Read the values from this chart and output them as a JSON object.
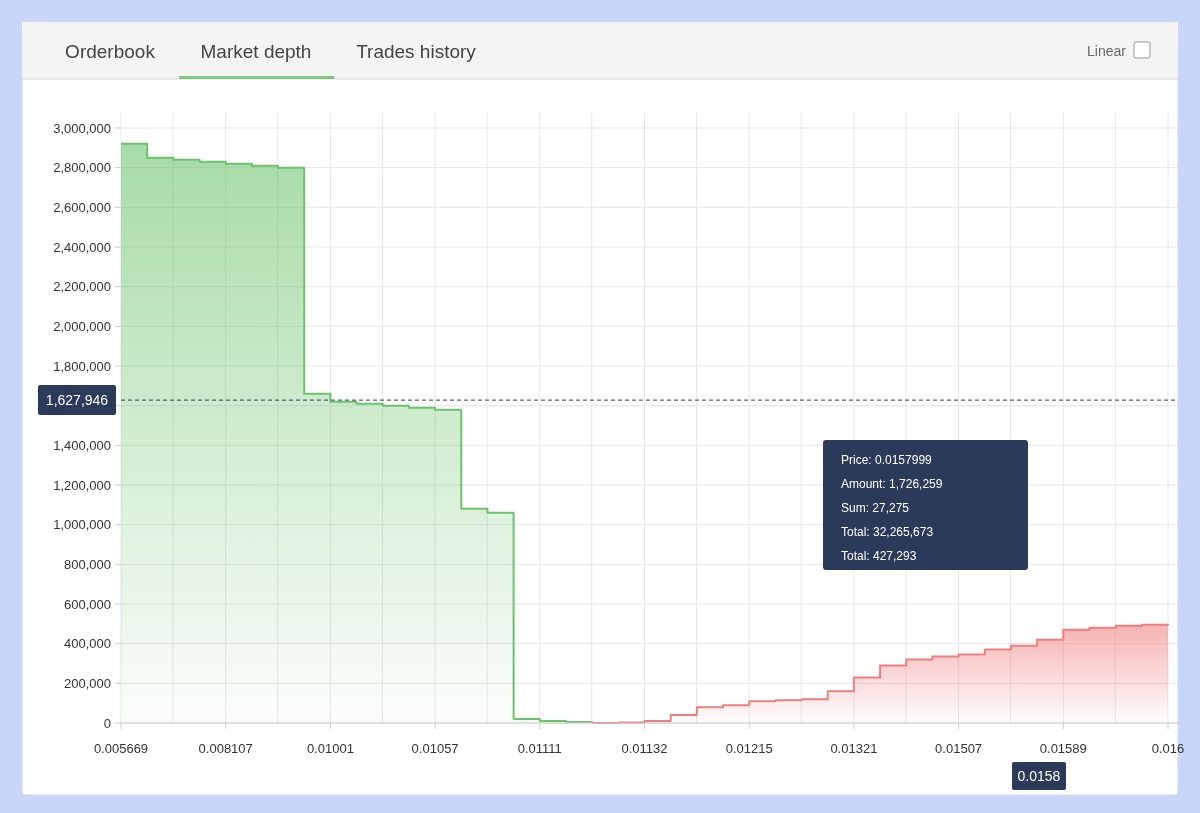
{
  "chart_data": {
    "type": "area",
    "categories": [
      "0.005669",
      null,
      null,
      null,
      "0.008107",
      null,
      null,
      null,
      "0.01001",
      null,
      null,
      null,
      "0.01057",
      null,
      null,
      null,
      "0.01111",
      null,
      null,
      null,
      "0.01132",
      null,
      null,
      null,
      "0.01215",
      null,
      null,
      null,
      "0.01321",
      null,
      null,
      null,
      "0.01507",
      null,
      null,
      null,
      "0.01589",
      null,
      null,
      null,
      "0.016"
    ],
    "series": [
      {
        "color": "#6cc36c",
        "values": [
          2920000,
          2850000,
          2840000,
          2830000,
          2820000,
          2810000,
          2800000,
          1660000,
          1620000,
          1610000,
          1600000,
          1590000,
          1580000,
          1080000,
          1060000,
          20000,
          10000,
          5000,
          3000,
          null,
          null,
          null,
          null,
          null,
          null,
          null,
          null,
          null,
          null,
          null,
          null,
          null,
          null,
          null,
          null,
          null,
          null,
          null,
          null,
          null,
          null
        ]
      },
      {
        "color": "#ef7f7f",
        "values": [
          null,
          null,
          null,
          null,
          null,
          null,
          null,
          null,
          null,
          null,
          null,
          null,
          null,
          null,
          null,
          null,
          null,
          null,
          0,
          2000,
          10000,
          40000,
          80000,
          90000,
          110000,
          115000,
          120000,
          160000,
          230000,
          290000,
          320000,
          335000,
          345000,
          370000,
          390000,
          420000,
          470000,
          480000,
          490000,
          495000,
          500000
        ]
      }
    ],
    "ylim": [
      0,
      3000000
    ],
    "yticks": [
      {
        "value": 0,
        "label": "0"
      },
      {
        "value": 200000,
        "label": "200,000"
      },
      {
        "value": 400000,
        "label": "400,000"
      },
      {
        "value": 600000,
        "label": "600,000"
      },
      {
        "value": 800000,
        "label": "800,000"
      },
      {
        "value": 1000000,
        "label": "1,000,000"
      },
      {
        "value": 1200000,
        "label": "1,200,000"
      },
      {
        "value": 1400000,
        "label": "1,400,000"
      },
      {
        "value": 1600000,
        "label": null
      },
      {
        "value": 1800000,
        "label": "1,800,000"
      },
      {
        "value": 2000000,
        "label": "2,000,000"
      },
      {
        "value": 2200000,
        "label": "2,200,000"
      },
      {
        "value": 2400000,
        "label": "2,400,000"
      },
      {
        "value": 2600000,
        "label": "2,600,000"
      },
      {
        "value": 2800000,
        "label": "2,800,000"
      },
      {
        "value": 3000000,
        "label": "3,000,000"
      }
    ],
    "grid": true,
    "ref_lines": [
      {
        "axis": "y",
        "value": 1627946,
        "label": "1,627,946",
        "line_style": "dashed",
        "color": "#2c3a5a"
      }
    ],
    "annotations": [
      "Orderbook",
      "Market depth",
      "Trades history",
      "Linear",
      "0.0158",
      "Price: 0.0157999",
      "Amount: 1,726,259",
      "Sum: 27,275",
      "Total: 32,265,673",
      "Total: 427,293"
    ]
  }
}
